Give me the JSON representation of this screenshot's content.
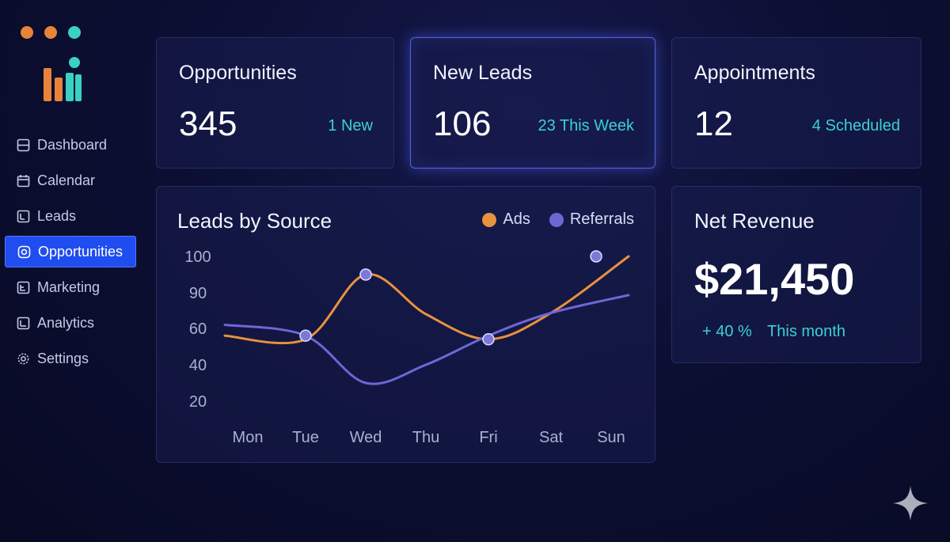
{
  "colors": {
    "accent": "#1f4df0",
    "teal": "#3ad0d6",
    "orange": "#e8913e",
    "purple": "#6f66d6"
  },
  "header": {
    "dots": [
      "#e8833a",
      "#e8833a",
      "#3ad0c4"
    ],
    "logo_icon": "bar-chart-logo-icon"
  },
  "sidebar": {
    "items": [
      {
        "label": "Dashboard",
        "icon": "dashboard-icon"
      },
      {
        "label": "Calendar",
        "icon": "calendar-icon"
      },
      {
        "label": "Leads",
        "icon": "leads-icon"
      },
      {
        "label": "Opportunities",
        "icon": "opportunities-icon",
        "active": true
      },
      {
        "label": "Marketing",
        "icon": "marketing-icon"
      },
      {
        "label": "Analytics",
        "icon": "analytics-icon"
      },
      {
        "label": "Settings",
        "icon": "settings-gear-icon"
      }
    ]
  },
  "stats": {
    "opportunities": {
      "title": "Opportunities",
      "value": "345",
      "sub": "1 New"
    },
    "new_leads": {
      "title": "New Leads",
      "value": "106",
      "sub": "23 This Week"
    },
    "appointments": {
      "title": "Appointments",
      "value": "12",
      "sub": "4 Scheduled"
    }
  },
  "revenue": {
    "title": "Net Revenue",
    "value": "$21,450",
    "change": "+ 40 %",
    "period": "This month"
  },
  "chart": {
    "title": "Leads by Source"
  },
  "chart_data": {
    "type": "line",
    "title": "Leads by Source",
    "categories": [
      "Mon",
      "Tue",
      "Wed",
      "Thu",
      "Fri",
      "Sat",
      "Sun"
    ],
    "y_ticks": [
      "100",
      "90",
      "60",
      "40",
      "20"
    ],
    "legend_position": "top-right",
    "grid": false,
    "series": [
      {
        "name": "Ads",
        "color": "#e8913e",
        "values": [
          56,
          54,
          95,
          72,
          54,
          73,
          100
        ]
      },
      {
        "name": "Referrals",
        "color": "#6f66d6",
        "values": [
          63,
          56,
          30,
          40,
          56,
          73,
          88
        ]
      }
    ]
  },
  "watermark": {
    "icon": "sparkle-icon"
  }
}
